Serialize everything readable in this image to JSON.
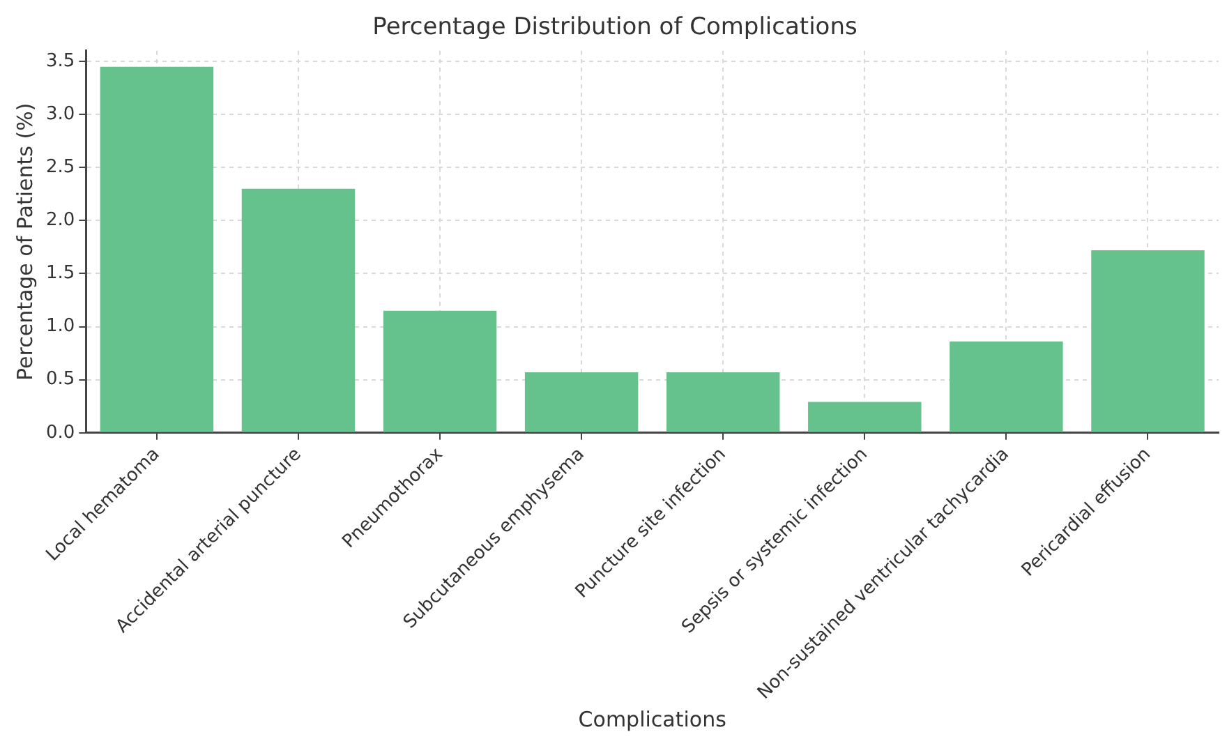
{
  "chart_data": {
    "type": "bar",
    "title": "Percentage Distribution of Complications",
    "xlabel": "Complications",
    "ylabel": "Percentage of Patients (%)",
    "categories": [
      "Local hematoma",
      "Accidental arterial puncture",
      "Pneumothorax",
      "Subcutaneous emphysema",
      "Puncture site infection",
      "Sepsis or systemic infection",
      "Non-sustained ventricular tachycardia",
      "Pericardial effusion"
    ],
    "values": [
      3.45,
      2.3,
      1.15,
      0.57,
      0.57,
      0.29,
      0.86,
      1.72
    ],
    "color": "#66c28d",
    "ylim": [
      0,
      3.6
    ],
    "yticks": [
      {
        "value": 0,
        "label": "0.0"
      },
      0.5,
      {
        "value": 1,
        "label": "1.0"
      },
      1.5,
      {
        "value": 2,
        "label": "2.0"
      },
      2.5,
      {
        "value": 3,
        "label": "3.0"
      },
      3.5
    ],
    "grid": true,
    "legend": false
  }
}
